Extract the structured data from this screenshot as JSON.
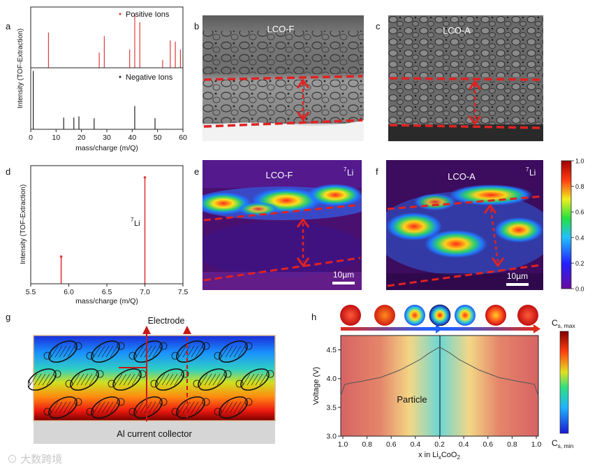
{
  "panel_labels": [
    "a",
    "b",
    "c",
    "d",
    "e",
    "f",
    "g",
    "h"
  ],
  "panel_a": {
    "ylabel": "Intensity (TOF-Extraction)",
    "xlabel": "mass/charge (m/Q)",
    "xticks": [
      "0",
      "10",
      "20",
      "30",
      "40",
      "50",
      "60"
    ]
  },
  "panel_b": {
    "label": "LCO-F"
  },
  "panel_c": {
    "label": "LCO-A"
  },
  "panel_d": {
    "ylabel": "Intensity (TOF-Extraction)",
    "xlabel": "mass/charge (m/Q)",
    "xticks": [
      "5.5",
      "6.0",
      "6.5",
      "7.0",
      "7.5"
    ],
    "peak_label_sup": "7",
    "peak_label_main": "Li"
  },
  "panel_e": {
    "label": "LCO-F",
    "iso_sup": "7",
    "iso_main": "Li",
    "scalebar": "10µm"
  },
  "panel_f": {
    "label": "LCO-A",
    "iso_sup": "7",
    "iso_main": "Li",
    "scalebar": "10µm"
  },
  "colorbar_ef": {
    "ticks": [
      "1.0",
      "0.8",
      "0.6",
      "0.4",
      "0.2",
      "0.0"
    ]
  },
  "panel_g": {
    "electrode_label": "Electrode",
    "collector_label": "Al current collector"
  },
  "panel_h": {
    "ylabel": "Voltage (V)",
    "xlabel_pre": "x in Li",
    "xlabel_sub": "x",
    "xlabel_post": "CoO",
    "xlabel_sub2": "2",
    "xticks": [
      "1.0",
      "0.8",
      "0.6",
      "0.4",
      "0.2",
      "0.4",
      "0.6",
      "0.8",
      "1.0"
    ],
    "yticks": [
      "3.0",
      "3.5",
      "4.0",
      "4.5"
    ],
    "particle_label": "Particle",
    "cmax_main": "C",
    "cmax_sub": "s, max",
    "cmin_main": "C",
    "cmin_sub": "s, min"
  },
  "watermark": "大数跨境",
  "chart_data": [
    {
      "type": "bar",
      "title": "Positive Ions",
      "xlabel": "mass/charge (m/Q)",
      "ylabel": "Intensity (TOF-Extraction)",
      "xlim": [
        0,
        60
      ],
      "x": [
        7,
        27,
        29,
        39,
        41,
        43,
        52,
        55,
        57,
        59
      ],
      "values": [
        0.58,
        0.25,
        0.52,
        0.3,
        0.88,
        0.75,
        0.13,
        0.45,
        0.43,
        0.3
      ],
      "legend": "Positive Ions",
      "color": "#e03a3a"
    },
    {
      "type": "bar",
      "title": "Negative Ions",
      "xlabel": "mass/charge (m/Q)",
      "ylabel": "Intensity (TOF-Extraction)",
      "xlim": [
        0,
        60
      ],
      "x": [
        1,
        13,
        17,
        19,
        25,
        41,
        49
      ],
      "values": [
        0.95,
        0.19,
        0.19,
        0.21,
        0.18,
        0.38,
        0.18
      ],
      "legend": "Negative Ions",
      "color": "#222222"
    },
    {
      "type": "bar",
      "title": "",
      "xlabel": "mass/charge (m/Q)",
      "ylabel": "Intensity (TOF-Extraction)",
      "xlim": [
        5.5,
        7.5
      ],
      "x": [
        5.9,
        7.0
      ],
      "values": [
        0.23,
        0.9
      ],
      "color": "#e03a3a"
    },
    {
      "type": "line",
      "title": "",
      "xlabel": "x in LixCoO2",
      "ylabel": "Voltage (V)",
      "ylim": [
        3.0,
        4.75
      ],
      "x": [
        0,
        0.02,
        0.05,
        0.1,
        0.2,
        0.3,
        0.4,
        0.45,
        0.5,
        0.55,
        0.6,
        0.7,
        0.8,
        0.9,
        0.95,
        0.98,
        1.0
      ],
      "values": [
        3.7,
        3.9,
        3.92,
        3.95,
        4.02,
        4.15,
        4.33,
        4.45,
        4.55,
        4.45,
        4.33,
        4.15,
        4.02,
        3.95,
        3.92,
        3.9,
        3.7
      ]
    }
  ]
}
